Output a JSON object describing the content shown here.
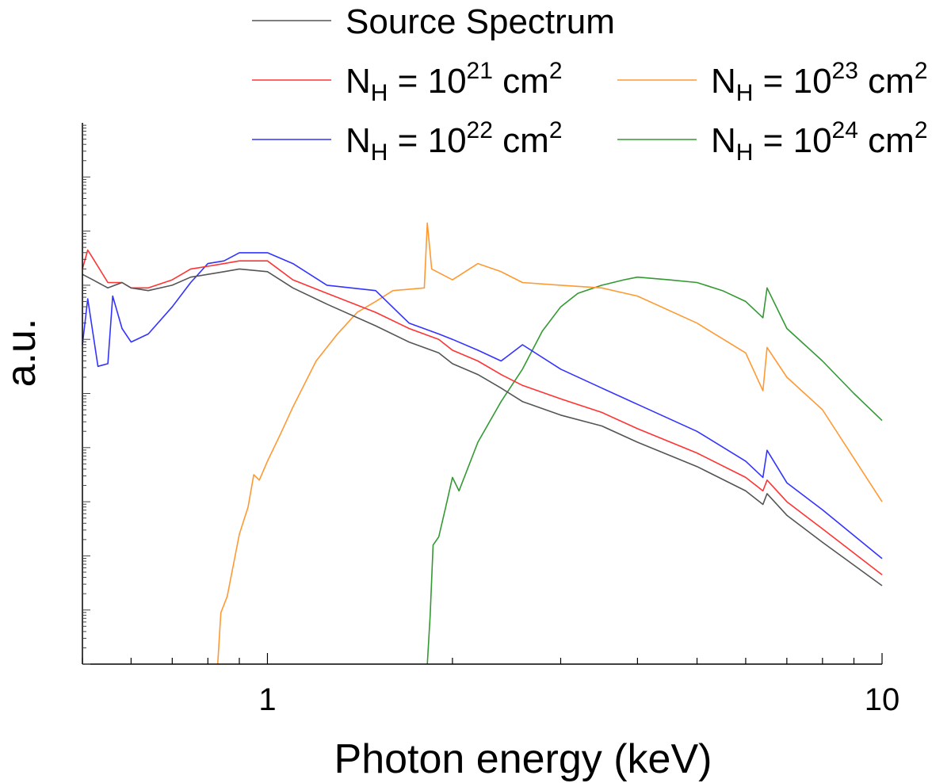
{
  "chart_data": {
    "type": "line",
    "title": "",
    "xlabel": "Photon energy (keV)",
    "ylabel": "a.u.",
    "xscale": "log",
    "xlim": [
      0.5,
      10
    ],
    "ylim_decades": [
      0,
      10
    ],
    "x_tick_labels": [
      {
        "value": 1,
        "label": "1"
      },
      {
        "value": 10,
        "label": "10"
      }
    ],
    "y_tick_labels": [],
    "legend_position": "top",
    "series": [
      {
        "name": "Source Spectrum",
        "legend_text": "Source Spectrum",
        "color": "#555555",
        "x": [
          0.5,
          0.52,
          0.55,
          0.58,
          0.6,
          0.64,
          0.7,
          0.75,
          0.8,
          0.85,
          0.9,
          1.0,
          1.1,
          1.25,
          1.5,
          1.7,
          1.9,
          2.0,
          2.2,
          2.4,
          2.6,
          3.0,
          3.5,
          4.0,
          5.0,
          6.0,
          6.4,
          6.5,
          7.0,
          8.0,
          10.0
        ],
        "y": [
          7.2,
          7.1,
          6.95,
          7.05,
          6.95,
          6.9,
          7.0,
          7.15,
          7.2,
          7.25,
          7.3,
          7.25,
          6.95,
          6.65,
          6.25,
          5.95,
          5.75,
          5.55,
          5.35,
          5.1,
          4.85,
          4.6,
          4.4,
          4.1,
          3.65,
          3.2,
          2.95,
          3.15,
          2.75,
          2.25,
          1.45
        ]
      },
      {
        "name": "NH = 10^21 cm2",
        "legend_text": {
          "prefix": "N",
          "sub": "H",
          "mid": " = 10",
          "sup": "21",
          "suffix": " cm",
          "unit_sup": "2"
        },
        "color": "#ff3333",
        "x": [
          0.5,
          0.51,
          0.52,
          0.55,
          0.58,
          0.6,
          0.64,
          0.7,
          0.75,
          0.8,
          0.85,
          0.9,
          1.0,
          1.1,
          1.25,
          1.5,
          1.7,
          1.9,
          2.0,
          2.2,
          2.4,
          2.6,
          3.0,
          3.5,
          4.0,
          5.0,
          6.0,
          6.4,
          6.5,
          7.0,
          8.0,
          10.0
        ],
        "y": [
          7.3,
          7.65,
          7.5,
          7.05,
          7.05,
          6.95,
          6.95,
          7.1,
          7.3,
          7.35,
          7.4,
          7.45,
          7.45,
          7.1,
          6.85,
          6.5,
          6.2,
          6.0,
          5.8,
          5.6,
          5.35,
          5.15,
          4.9,
          4.65,
          4.35,
          3.9,
          3.45,
          3.2,
          3.4,
          3.0,
          2.5,
          1.65
        ]
      },
      {
        "name": "NH = 10^22 cm2",
        "legend_text": {
          "prefix": "N",
          "sub": "H",
          "mid": " = 10",
          "sup": "22",
          "suffix": " cm",
          "unit_sup": "2"
        },
        "color": "#3333ff",
        "x": [
          0.5,
          0.51,
          0.53,
          0.55,
          0.56,
          0.58,
          0.6,
          0.64,
          0.7,
          0.75,
          0.8,
          0.85,
          0.9,
          1.0,
          1.1,
          1.25,
          1.5,
          1.7,
          1.9,
          2.0,
          2.2,
          2.4,
          2.6,
          3.0,
          3.5,
          4.0,
          5.0,
          6.0,
          6.4,
          6.5,
          7.0,
          8.0,
          10.0
        ],
        "y": [
          5.9,
          6.75,
          5.5,
          5.55,
          6.8,
          6.2,
          5.95,
          6.1,
          6.6,
          7.05,
          7.4,
          7.45,
          7.6,
          7.6,
          7.4,
          7.0,
          6.9,
          6.3,
          6.1,
          6.0,
          5.8,
          5.6,
          5.9,
          5.45,
          5.1,
          4.8,
          4.3,
          3.75,
          3.45,
          3.95,
          3.35,
          2.85,
          1.95
        ]
      },
      {
        "name": "NH = 10^23 cm2",
        "legend_text": {
          "prefix": "N",
          "sub": "H",
          "mid": " = 10",
          "sup": "23",
          "suffix": " cm",
          "unit_sup": "2"
        },
        "color": "#ff9933",
        "x": [
          0.83,
          0.84,
          0.86,
          0.9,
          0.93,
          0.95,
          0.97,
          1.0,
          1.05,
          1.1,
          1.2,
          1.3,
          1.4,
          1.5,
          1.6,
          1.8,
          1.82,
          1.85,
          2.0,
          2.2,
          2.4,
          2.6,
          3.0,
          3.5,
          4.0,
          5.0,
          6.0,
          6.4,
          6.5,
          7.0,
          8.0,
          10.0
        ],
        "y": [
          0.0,
          0.95,
          1.25,
          2.4,
          2.9,
          3.5,
          3.4,
          3.75,
          4.25,
          4.75,
          5.6,
          6.1,
          6.5,
          6.7,
          6.9,
          6.95,
          8.15,
          7.3,
          7.1,
          7.4,
          7.25,
          7.05,
          7.0,
          6.95,
          6.8,
          6.3,
          5.75,
          5.05,
          5.85,
          5.3,
          4.7,
          3.0
        ]
      },
      {
        "name": "NH = 10^24 cm2",
        "legend_text": {
          "prefix": "N",
          "sub": "H",
          "mid": " = 10",
          "sup": "24",
          "suffix": " cm",
          "unit_sup": "2"
        },
        "color": "#339933",
        "x": [
          1.82,
          1.84,
          1.86,
          1.9,
          1.95,
          2.0,
          2.05,
          2.2,
          2.4,
          2.6,
          2.8,
          3.0,
          3.2,
          3.5,
          3.8,
          4.0,
          4.5,
          5.0,
          5.5,
          6.0,
          6.4,
          6.5,
          7.0,
          8.0,
          9.0,
          10.0
        ],
        "y": [
          0.0,
          0.9,
          2.2,
          2.35,
          2.9,
          3.45,
          3.2,
          4.1,
          4.85,
          5.45,
          6.15,
          6.6,
          6.85,
          7.0,
          7.1,
          7.15,
          7.1,
          7.05,
          6.9,
          6.7,
          6.4,
          6.95,
          6.2,
          5.6,
          5.0,
          4.5
        ]
      }
    ]
  }
}
